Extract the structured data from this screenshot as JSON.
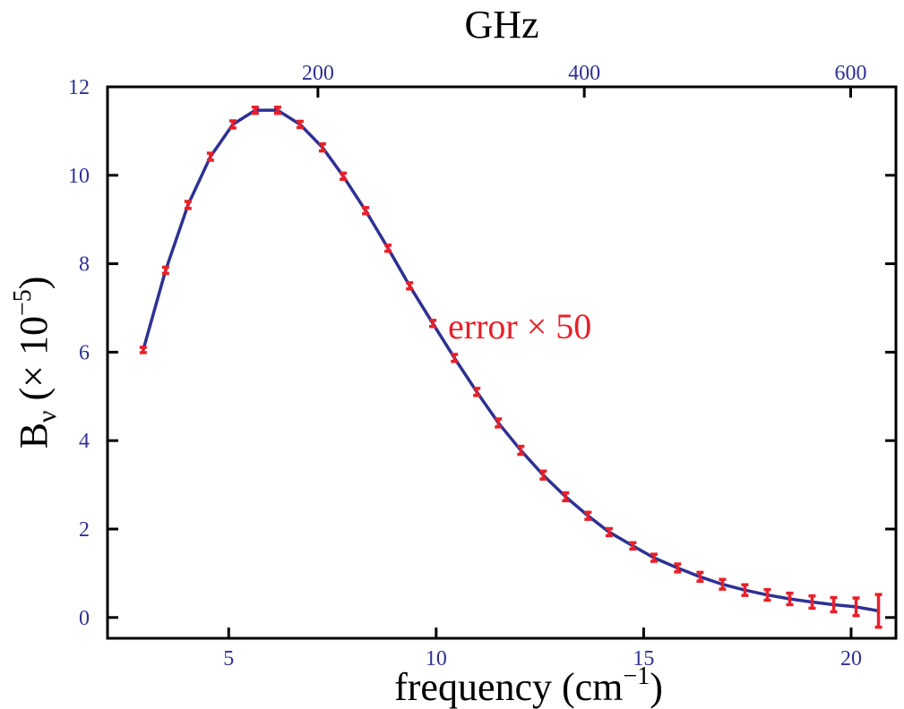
{
  "chart_data": {
    "type": "line",
    "top_label": "GHz",
    "x_label_parts": [
      "frequency (cm",
      "−1",
      ")"
    ],
    "y_label_parts": [
      "B",
      "ν",
      " (× 10",
      "−5",
      ")"
    ],
    "annotation": "error × 50",
    "x": [
      2.94,
      3.48,
      4.02,
      4.56,
      5.1,
      5.64,
      6.18,
      6.72,
      7.26,
      7.76,
      8.3,
      8.84,
      9.36,
      9.92,
      10.44,
      10.98,
      11.5,
      12.04,
      12.58,
      13.12,
      13.66,
      14.17,
      14.74,
      15.25,
      15.82,
      16.36,
      16.9,
      17.44,
      17.98,
      18.52,
      19.06,
      19.58,
      20.12,
      20.66
    ],
    "values": [
      6.05,
      7.85,
      9.33,
      10.42,
      11.15,
      11.47,
      11.47,
      11.15,
      10.63,
      9.98,
      9.2,
      8.35,
      7.5,
      6.65,
      5.87,
      5.1,
      4.4,
      3.78,
      3.22,
      2.73,
      2.3,
      1.93,
      1.62,
      1.35,
      1.12,
      0.92,
      0.75,
      0.62,
      0.51,
      0.42,
      0.35,
      0.29,
      0.24,
      0.15
    ],
    "errors": [
      0.06,
      0.07,
      0.08,
      0.08,
      0.08,
      0.07,
      0.07,
      0.07,
      0.08,
      0.07,
      0.07,
      0.07,
      0.07,
      0.07,
      0.08,
      0.08,
      0.09,
      0.09,
      0.09,
      0.09,
      0.08,
      0.08,
      0.07,
      0.08,
      0.09,
      0.1,
      0.11,
      0.12,
      0.12,
      0.13,
      0.14,
      0.16,
      0.2,
      0.37
    ],
    "color": "#2e3192",
    "error_color": "#e8202a",
    "xlim": [
      2.08,
      21.08
    ],
    "xticks": [
      5,
      10,
      15,
      20
    ],
    "x2lim": [
      42,
      634
    ],
    "x2ticks": [
      200,
      400,
      600
    ],
    "ylim": [
      -0.47,
      12
    ],
    "yticks": [
      0,
      2,
      4,
      6,
      8,
      10,
      12
    ]
  }
}
